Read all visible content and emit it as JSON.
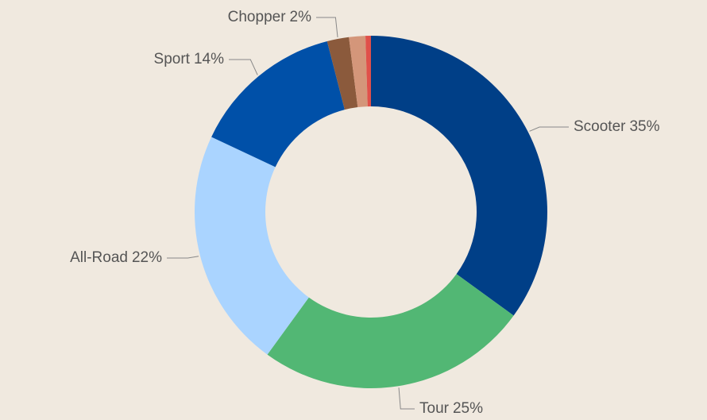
{
  "chart_data": {
    "type": "donut",
    "categories": [
      "Scooter",
      "Tour",
      "All-Road",
      "Sport",
      "Chopper",
      null,
      null
    ],
    "values": [
      35,
      25,
      22,
      14,
      2,
      1.5,
      0.5
    ],
    "value_labels": [
      "35%",
      "25%",
      "22%",
      "14%",
      "2%",
      null,
      null
    ],
    "colors": [
      "#003f87",
      "#52b774",
      "#aad4ff",
      "#0050a8",
      "#8b5a3c",
      "#d4967a",
      "#e0504a"
    ]
  }
}
